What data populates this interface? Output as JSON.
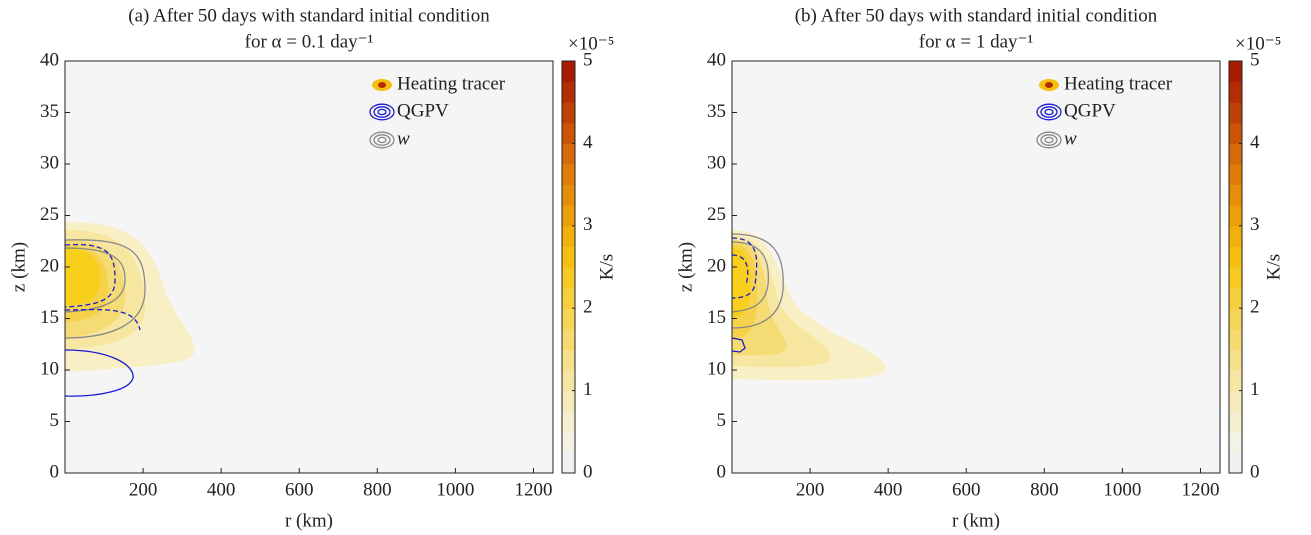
{
  "chart_data": [
    {
      "type": "contour",
      "title": [
        "(a) After 50 days with standard initial condition",
        "for α = 0.1 day⁻¹"
      ],
      "xlabel": "r (km)",
      "ylabel": "z (km)",
      "xlim": [
        0,
        1250
      ],
      "ylim": [
        0,
        40
      ],
      "xticks": [
        200,
        400,
        600,
        800,
        1000,
        1200
      ],
      "yticks": [
        0,
        5,
        10,
        15,
        20,
        25,
        30,
        35,
        40
      ],
      "legend": [
        "Heating tracer",
        "QGPV",
        "w"
      ],
      "colorbar": {
        "label": "K/s",
        "multiplier": "×10⁻⁵",
        "lim": [
          0,
          5
        ],
        "ticks": [
          0,
          1,
          2,
          3,
          4,
          5
        ],
        "colors": [
          "#f0f0f0",
          "#f4f1e6",
          "#f6eed0",
          "#f7ebbb",
          "#f7e6a3",
          "#f6e08a",
          "#f6da70",
          "#f5d456",
          "#f6cf3c",
          "#f7c923",
          "#f5c010",
          "#f0b10c",
          "#eba00a",
          "#e58f09",
          "#df7d08",
          "#d66a07",
          "#cb5505",
          "#bf4104",
          "#b32d03",
          "#a81c02"
        ]
      }
    },
    {
      "type": "contour",
      "title": [
        "(b) After 50 days with standard initial condition",
        "for α = 1 day⁻¹"
      ],
      "xlabel": "r (km)",
      "ylabel": "z (km)",
      "xlim": [
        0,
        1250
      ],
      "ylim": [
        0,
        40
      ],
      "xticks": [
        200,
        400,
        600,
        800,
        1000,
        1200
      ],
      "yticks": [
        0,
        5,
        10,
        15,
        20,
        25,
        30,
        35,
        40
      ],
      "legend": [
        "Heating tracer",
        "QGPV",
        "w"
      ],
      "colorbar": {
        "label": "K/s",
        "multiplier": "×10⁻⁵",
        "lim": [
          0,
          5
        ],
        "ticks": [
          0,
          1,
          2,
          3,
          4,
          5
        ],
        "colors": [
          "#f0f0f0",
          "#f4f1e6",
          "#f6eed0",
          "#f7ebbb",
          "#f7e6a3",
          "#f6e08a",
          "#f6da70",
          "#f5d456",
          "#f6cf3c",
          "#f7c923",
          "#f5c010",
          "#f0b10c",
          "#eba00a",
          "#e58f09",
          "#df7d08",
          "#d66a07",
          "#cb5505",
          "#bf4104",
          "#b32d03",
          "#a81c02"
        ]
      }
    }
  ]
}
